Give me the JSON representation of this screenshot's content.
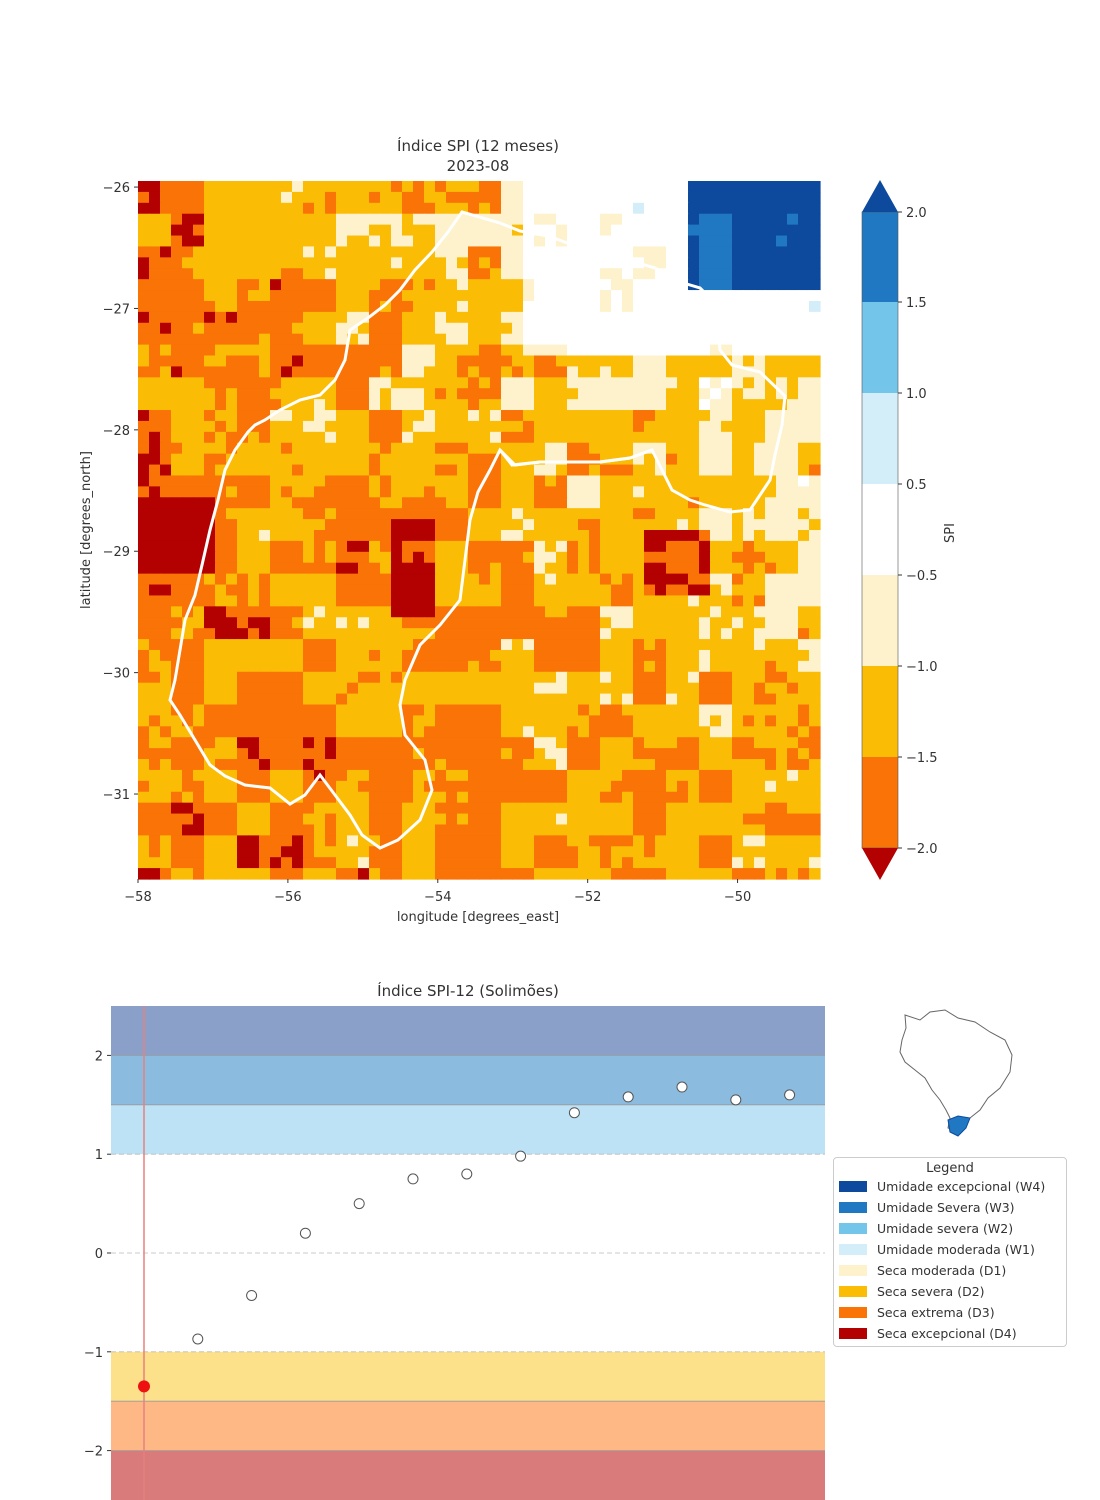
{
  "chart_data": [
    {
      "type": "heatmap",
      "title": "Índice SPI (12 meses)",
      "subtitle": "2023-08",
      "xlabel": "longitude [degrees_east]",
      "ylabel": "latitude [degrees_north]",
      "xticks": [
        "−58",
        "−56",
        "−54",
        "−52",
        "−50"
      ],
      "yticks": [
        "−26",
        "−27",
        "−28",
        "−29",
        "−30",
        "−31"
      ],
      "xlim": [
        -58,
        -48.9
      ],
      "ylim": [
        -31.7,
        -25.95
      ],
      "colorbar": {
        "label": "SPI",
        "ticks": [
          "−2.0",
          "−1.5",
          "−1.0",
          "−0.5",
          "0.5",
          "1.0",
          "1.5",
          "2.0"
        ],
        "colors": [
          "#f97306",
          "#fbbc05",
          "#fdf2cc",
          "#ffffff",
          "#d4eef9",
          "#74c5ea",
          "#1f78c1"
        ],
        "under_color": "#b30000",
        "over_color": "#0d4a9e"
      }
    },
    {
      "type": "scatter",
      "title": "Índice SPI-12 (Solimões)",
      "yticks": [
        "−2",
        "−1",
        "0",
        "1",
        "2"
      ],
      "ylim": [
        -2.5,
        2.5
      ],
      "x": [
        1,
        2,
        3,
        4,
        5,
        6,
        7,
        8,
        9,
        10,
        11,
        12,
        13
      ],
      "values": [
        -1.35,
        -0.87,
        -0.43,
        0.2,
        0.5,
        0.75,
        0.8,
        0.98,
        1.42,
        1.58,
        1.68,
        1.55,
        1.6
      ],
      "highlight_index": 0,
      "bands": [
        {
          "from": 2.0,
          "to": 2.5,
          "color": "#8aa0c8"
        },
        {
          "from": 1.5,
          "to": 2.0,
          "color": "#8bbbdf"
        },
        {
          "from": 1.0,
          "to": 1.5,
          "color": "#bde1f5"
        },
        {
          "from": -1.5,
          "to": -1.0,
          "color": "#fde08a"
        },
        {
          "from": -2.0,
          "to": -1.5,
          "color": "#fdb886"
        },
        {
          "from": -2.5,
          "to": -2.0,
          "color": "#d97b7b"
        }
      ]
    }
  ],
  "legend": {
    "title": "Legend",
    "items": [
      {
        "label": "Umidade excepcional (W4)",
        "color": "#0d4a9e"
      },
      {
        "label": "Umidade Severa (W3)",
        "color": "#1f78c1"
      },
      {
        "label": "Umidade severa (W2)",
        "color": "#74c5ea"
      },
      {
        "label": "Umidade moderada (W1)",
        "color": "#d4eef9"
      },
      {
        "label": "Seca moderada (D1)",
        "color": "#fdf2cc"
      },
      {
        "label": "Seca severa (D2)",
        "color": "#fbbc05"
      },
      {
        "label": "Seca extrema (D3)",
        "color": "#f97306"
      },
      {
        "label": "Seca excepcional (D4)",
        "color": "#b30000"
      }
    ]
  }
}
